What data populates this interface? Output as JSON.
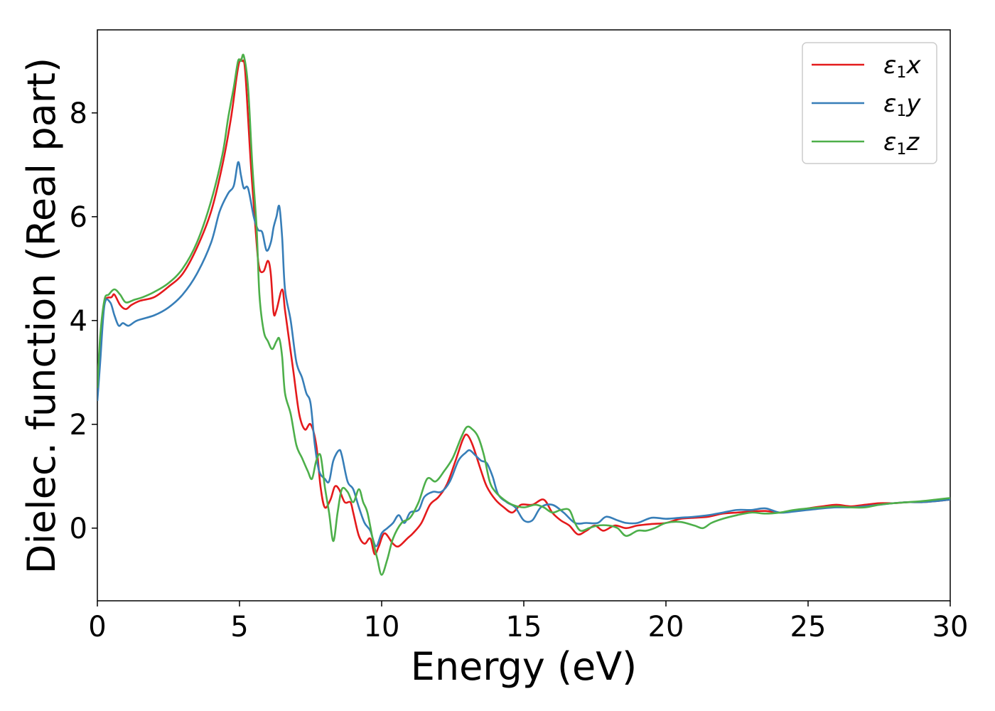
{
  "chart_data": {
    "type": "line",
    "xlabel": "Energy (eV)",
    "ylabel": "Dielec. function (Real part)",
    "xlim": [
      0,
      30
    ],
    "ylim": [
      -1.4,
      9.6
    ],
    "xticks": [
      0,
      5,
      10,
      15,
      20,
      25,
      30
    ],
    "yticks": [
      0,
      2,
      4,
      6,
      8
    ],
    "grid": false,
    "legend_position": "top-right",
    "series": [
      {
        "name": "ε1x",
        "symbol": "ε",
        "sub": "1",
        "var": "x",
        "color": "#e41a1c",
        "points": [
          [
            0,
            2.8
          ],
          [
            0.1,
            3.6
          ],
          [
            0.25,
            4.35
          ],
          [
            0.5,
            4.45
          ],
          [
            0.6,
            4.5
          ],
          [
            0.8,
            4.3
          ],
          [
            1.0,
            4.22
          ],
          [
            1.2,
            4.3
          ],
          [
            1.5,
            4.38
          ],
          [
            2.0,
            4.45
          ],
          [
            2.5,
            4.65
          ],
          [
            3.0,
            4.9
          ],
          [
            3.5,
            5.4
          ],
          [
            4.0,
            6.1
          ],
          [
            4.4,
            7.0
          ],
          [
            4.7,
            7.9
          ],
          [
            4.9,
            8.7
          ],
          [
            5.0,
            9.0
          ],
          [
            5.1,
            9.0
          ],
          [
            5.2,
            8.8
          ],
          [
            5.4,
            7.0
          ],
          [
            5.6,
            5.5
          ],
          [
            5.7,
            5.0
          ],
          [
            5.85,
            4.95
          ],
          [
            6.0,
            5.15
          ],
          [
            6.1,
            4.9
          ],
          [
            6.2,
            4.15
          ],
          [
            6.3,
            4.2
          ],
          [
            6.5,
            4.6
          ],
          [
            6.6,
            4.2
          ],
          [
            6.75,
            3.6
          ],
          [
            6.9,
            3.0
          ],
          [
            7.1,
            2.2
          ],
          [
            7.3,
            1.9
          ],
          [
            7.5,
            2.0
          ],
          [
            7.7,
            1.6
          ],
          [
            7.85,
            0.8
          ],
          [
            8.0,
            0.4
          ],
          [
            8.2,
            0.55
          ],
          [
            8.35,
            0.8
          ],
          [
            8.5,
            0.75
          ],
          [
            8.7,
            0.5
          ],
          [
            8.9,
            0.5
          ],
          [
            9.0,
            0.3
          ],
          [
            9.2,
            -0.15
          ],
          [
            9.4,
            -0.3
          ],
          [
            9.6,
            -0.2
          ],
          [
            9.75,
            -0.5
          ],
          [
            9.9,
            -0.35
          ],
          [
            10.1,
            -0.1
          ],
          [
            10.4,
            -0.3
          ],
          [
            10.6,
            -0.35
          ],
          [
            10.9,
            -0.2
          ],
          [
            11.1,
            -0.1
          ],
          [
            11.4,
            0.1
          ],
          [
            11.7,
            0.45
          ],
          [
            12.0,
            0.6
          ],
          [
            12.3,
            0.85
          ],
          [
            12.6,
            1.3
          ],
          [
            12.85,
            1.7
          ],
          [
            13.0,
            1.8
          ],
          [
            13.2,
            1.6
          ],
          [
            13.5,
            1.1
          ],
          [
            13.7,
            0.8
          ],
          [
            14.0,
            0.55
          ],
          [
            14.3,
            0.4
          ],
          [
            14.6,
            0.3
          ],
          [
            14.9,
            0.45
          ],
          [
            15.3,
            0.45
          ],
          [
            15.7,
            0.55
          ],
          [
            16.0,
            0.3
          ],
          [
            16.3,
            0.15
          ],
          [
            16.6,
            0.05
          ],
          [
            16.9,
            -0.12
          ],
          [
            17.2,
            -0.05
          ],
          [
            17.5,
            0.05
          ],
          [
            17.8,
            -0.05
          ],
          [
            18.2,
            0.05
          ],
          [
            18.6,
            0.0
          ],
          [
            19.0,
            0.05
          ],
          [
            19.5,
            0.08
          ],
          [
            20.0,
            0.1
          ],
          [
            20.5,
            0.18
          ],
          [
            21.0,
            0.2
          ],
          [
            21.5,
            0.22
          ],
          [
            22.0,
            0.28
          ],
          [
            22.5,
            0.3
          ],
          [
            23.0,
            0.32
          ],
          [
            23.5,
            0.33
          ],
          [
            24.0,
            0.3
          ],
          [
            24.5,
            0.33
          ],
          [
            25.0,
            0.38
          ],
          [
            25.5,
            0.42
          ],
          [
            26.0,
            0.45
          ],
          [
            26.5,
            0.42
          ],
          [
            27.0,
            0.45
          ],
          [
            27.5,
            0.48
          ],
          [
            28.0,
            0.48
          ],
          [
            28.5,
            0.5
          ],
          [
            29.0,
            0.5
          ],
          [
            29.5,
            0.52
          ],
          [
            30.0,
            0.55
          ]
        ]
      },
      {
        "name": "ε1y",
        "symbol": "ε",
        "sub": "1",
        "var": "y",
        "color": "#377eb8",
        "points": [
          [
            0,
            2.45
          ],
          [
            0.1,
            3.2
          ],
          [
            0.25,
            4.3
          ],
          [
            0.45,
            4.35
          ],
          [
            0.6,
            4.1
          ],
          [
            0.75,
            3.9
          ],
          [
            0.9,
            3.95
          ],
          [
            1.1,
            3.9
          ],
          [
            1.4,
            4.0
          ],
          [
            2.0,
            4.1
          ],
          [
            2.5,
            4.25
          ],
          [
            3.0,
            4.5
          ],
          [
            3.5,
            4.9
          ],
          [
            4.0,
            5.5
          ],
          [
            4.3,
            6.1
          ],
          [
            4.6,
            6.45
          ],
          [
            4.8,
            6.6
          ],
          [
            4.95,
            7.05
          ],
          [
            5.05,
            6.8
          ],
          [
            5.15,
            6.55
          ],
          [
            5.3,
            6.55
          ],
          [
            5.5,
            6.0
          ],
          [
            5.65,
            5.75
          ],
          [
            5.8,
            5.7
          ],
          [
            5.95,
            5.35
          ],
          [
            6.1,
            5.5
          ],
          [
            6.2,
            5.8
          ],
          [
            6.3,
            6.0
          ],
          [
            6.4,
            6.2
          ],
          [
            6.5,
            5.6
          ],
          [
            6.6,
            4.6
          ],
          [
            6.8,
            4.0
          ],
          [
            7.0,
            3.2
          ],
          [
            7.2,
            2.9
          ],
          [
            7.35,
            2.6
          ],
          [
            7.5,
            2.4
          ],
          [
            7.65,
            1.6
          ],
          [
            7.8,
            1.1
          ],
          [
            8.0,
            0.95
          ],
          [
            8.15,
            0.9
          ],
          [
            8.3,
            1.3
          ],
          [
            8.5,
            1.5
          ],
          [
            8.6,
            1.4
          ],
          [
            8.8,
            0.9
          ],
          [
            9.0,
            0.75
          ],
          [
            9.2,
            0.4
          ],
          [
            9.4,
            0.1
          ],
          [
            9.6,
            -0.05
          ],
          [
            9.8,
            -0.35
          ],
          [
            10.0,
            -0.1
          ],
          [
            10.2,
            0.0
          ],
          [
            10.4,
            0.1
          ],
          [
            10.6,
            0.25
          ],
          [
            10.8,
            0.1
          ],
          [
            11.0,
            0.3
          ],
          [
            11.3,
            0.35
          ],
          [
            11.5,
            0.6
          ],
          [
            11.8,
            0.7
          ],
          [
            12.1,
            0.7
          ],
          [
            12.4,
            0.9
          ],
          [
            12.7,
            1.3
          ],
          [
            12.95,
            1.45
          ],
          [
            13.1,
            1.5
          ],
          [
            13.3,
            1.4
          ],
          [
            13.5,
            1.3
          ],
          [
            13.7,
            1.25
          ],
          [
            13.9,
            1.0
          ],
          [
            14.1,
            0.65
          ],
          [
            14.4,
            0.5
          ],
          [
            14.7,
            0.4
          ],
          [
            15.0,
            0.15
          ],
          [
            15.3,
            0.15
          ],
          [
            15.6,
            0.4
          ],
          [
            16.0,
            0.45
          ],
          [
            16.4,
            0.3
          ],
          [
            16.8,
            0.1
          ],
          [
            17.2,
            0.1
          ],
          [
            17.6,
            0.1
          ],
          [
            17.9,
            0.22
          ],
          [
            18.3,
            0.15
          ],
          [
            18.6,
            0.1
          ],
          [
            19.0,
            0.1
          ],
          [
            19.5,
            0.2
          ],
          [
            20.0,
            0.18
          ],
          [
            20.5,
            0.2
          ],
          [
            21.0,
            0.22
          ],
          [
            21.5,
            0.25
          ],
          [
            22.0,
            0.3
          ],
          [
            22.5,
            0.35
          ],
          [
            23.0,
            0.35
          ],
          [
            23.5,
            0.38
          ],
          [
            24.0,
            0.3
          ],
          [
            24.5,
            0.32
          ],
          [
            25.0,
            0.35
          ],
          [
            25.5,
            0.38
          ],
          [
            26.0,
            0.4
          ],
          [
            26.5,
            0.4
          ],
          [
            27.0,
            0.42
          ],
          [
            27.5,
            0.45
          ],
          [
            28.0,
            0.48
          ],
          [
            28.5,
            0.5
          ],
          [
            29.0,
            0.5
          ],
          [
            29.5,
            0.52
          ],
          [
            30.0,
            0.55
          ]
        ]
      },
      {
        "name": "ε1z",
        "symbol": "ε",
        "sub": "1",
        "var": "z",
        "color": "#4daf4a",
        "points": [
          [
            0,
            2.7
          ],
          [
            0.1,
            3.7
          ],
          [
            0.25,
            4.4
          ],
          [
            0.4,
            4.5
          ],
          [
            0.6,
            4.6
          ],
          [
            0.8,
            4.5
          ],
          [
            1.0,
            4.35
          ],
          [
            1.3,
            4.4
          ],
          [
            1.6,
            4.45
          ],
          [
            2.0,
            4.55
          ],
          [
            2.5,
            4.72
          ],
          [
            3.0,
            5.0
          ],
          [
            3.5,
            5.5
          ],
          [
            4.0,
            6.3
          ],
          [
            4.4,
            7.2
          ],
          [
            4.6,
            7.9
          ],
          [
            4.8,
            8.5
          ],
          [
            4.95,
            9.0
          ],
          [
            5.05,
            9.0
          ],
          [
            5.15,
            9.1
          ],
          [
            5.3,
            8.5
          ],
          [
            5.45,
            7.0
          ],
          [
            5.6,
            5.8
          ],
          [
            5.7,
            4.5
          ],
          [
            5.85,
            3.8
          ],
          [
            6.0,
            3.6
          ],
          [
            6.15,
            3.45
          ],
          [
            6.3,
            3.6
          ],
          [
            6.4,
            3.65
          ],
          [
            6.5,
            3.3
          ],
          [
            6.6,
            2.6
          ],
          [
            6.8,
            2.2
          ],
          [
            7.0,
            1.6
          ],
          [
            7.2,
            1.35
          ],
          [
            7.4,
            1.1
          ],
          [
            7.55,
            0.95
          ],
          [
            7.7,
            1.3
          ],
          [
            7.85,
            1.4
          ],
          [
            8.0,
            0.8
          ],
          [
            8.15,
            0.3
          ],
          [
            8.3,
            -0.25
          ],
          [
            8.45,
            0.3
          ],
          [
            8.6,
            0.75
          ],
          [
            8.8,
            0.7
          ],
          [
            9.0,
            0.5
          ],
          [
            9.2,
            0.75
          ],
          [
            9.35,
            0.5
          ],
          [
            9.5,
            0.3
          ],
          [
            9.7,
            -0.25
          ],
          [
            9.85,
            -0.6
          ],
          [
            10.0,
            -0.9
          ],
          [
            10.2,
            -0.6
          ],
          [
            10.4,
            -0.2
          ],
          [
            10.7,
            0.1
          ],
          [
            11.0,
            0.2
          ],
          [
            11.3,
            0.5
          ],
          [
            11.6,
            0.95
          ],
          [
            11.9,
            0.9
          ],
          [
            12.2,
            1.1
          ],
          [
            12.5,
            1.35
          ],
          [
            12.8,
            1.75
          ],
          [
            13.0,
            1.95
          ],
          [
            13.2,
            1.9
          ],
          [
            13.4,
            1.75
          ],
          [
            13.6,
            1.4
          ],
          [
            13.8,
            0.9
          ],
          [
            14.0,
            0.7
          ],
          [
            14.3,
            0.55
          ],
          [
            14.6,
            0.45
          ],
          [
            15.0,
            0.4
          ],
          [
            15.4,
            0.45
          ],
          [
            15.7,
            0.4
          ],
          [
            16.0,
            0.3
          ],
          [
            16.3,
            0.35
          ],
          [
            16.6,
            0.35
          ],
          [
            16.8,
            0.1
          ],
          [
            17.0,
            -0.05
          ],
          [
            17.3,
            0.0
          ],
          [
            17.6,
            0.05
          ],
          [
            18.0,
            0.05
          ],
          [
            18.3,
            0.0
          ],
          [
            18.6,
            -0.15
          ],
          [
            19.0,
            -0.05
          ],
          [
            19.3,
            -0.05
          ],
          [
            19.6,
            0.0
          ],
          [
            20.0,
            0.1
          ],
          [
            20.5,
            0.12
          ],
          [
            21.0,
            0.05
          ],
          [
            21.3,
            0.0
          ],
          [
            21.6,
            0.1
          ],
          [
            22.0,
            0.18
          ],
          [
            22.5,
            0.25
          ],
          [
            23.0,
            0.3
          ],
          [
            23.5,
            0.28
          ],
          [
            24.0,
            0.3
          ],
          [
            24.5,
            0.35
          ],
          [
            25.0,
            0.38
          ],
          [
            25.5,
            0.4
          ],
          [
            26.0,
            0.42
          ],
          [
            26.5,
            0.4
          ],
          [
            27.0,
            0.4
          ],
          [
            27.5,
            0.45
          ],
          [
            28.0,
            0.48
          ],
          [
            28.5,
            0.5
          ],
          [
            29.0,
            0.52
          ],
          [
            29.5,
            0.55
          ],
          [
            30.0,
            0.58
          ]
        ]
      }
    ]
  }
}
